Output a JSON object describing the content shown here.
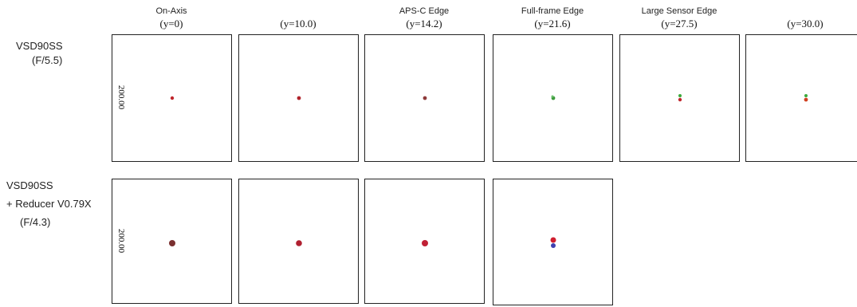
{
  "columns": [
    {
      "title": "On-Axis",
      "field": "(y=0)"
    },
    {
      "field": "(y=10.0)"
    },
    {
      "title": "APS-C Edge",
      "field": "(y=14.2)"
    },
    {
      "title": "Full-frame Edge",
      "field": "(y=21.6)"
    },
    {
      "title": "Large Sensor Edge",
      "field": "(y=27.5)"
    },
    {
      "field": "(y=30.0)"
    }
  ],
  "rows": [
    {
      "label": [
        "VSD90SS",
        "(F/5.5)"
      ],
      "scale": "200.00"
    },
    {
      "label": [
        "VSD90SS",
        "+ Reducer V0.79X",
        "(F/4.3)"
      ],
      "scale": "200.00"
    }
  ]
}
